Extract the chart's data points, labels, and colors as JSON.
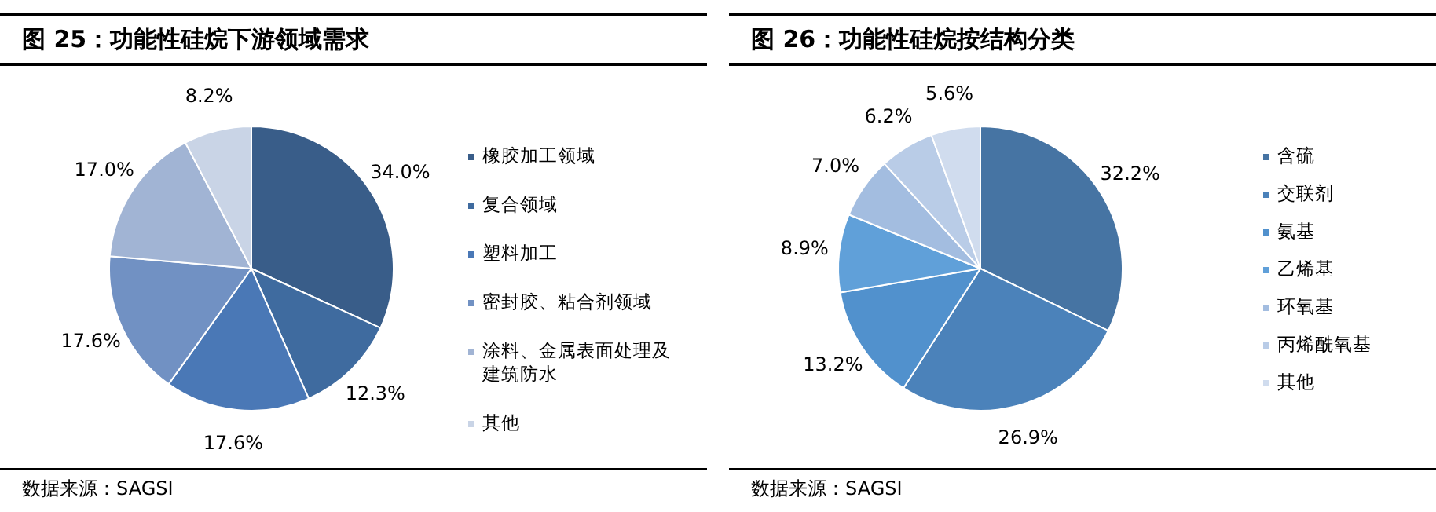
{
  "chart_data": [
    {
      "type": "pie",
      "title": "图 25：功能性硅烷下游领域需求",
      "categories": [
        "橡胶加工领域",
        "复合领域",
        "塑料加工",
        "密封胶、粘合剂领域",
        "涂料、金属表面处理及建筑防水",
        "其他"
      ],
      "values": [
        34.0,
        12.3,
        17.6,
        17.6,
        17.0,
        8.2
      ],
      "colors": [
        "#395d89",
        "#3f6b9f",
        "#4a78b6",
        "#7191c3",
        "#a1b4d4",
        "#c9d4e6"
      ],
      "value_labels": [
        "34.0%",
        "12.3%",
        "17.6%",
        "17.6%",
        "17.0%",
        "8.2%"
      ],
      "legend": "right",
      "annotations": [
        "数据来源：SAGSI"
      ]
    },
    {
      "type": "pie",
      "title": "图 26：功能性硅烷按结构分类",
      "categories": [
        "含硫",
        "交联剂",
        "氨基",
        "乙烯基",
        "环氧基",
        "丙烯酰氧基",
        "其他"
      ],
      "values": [
        32.2,
        26.9,
        13.2,
        8.9,
        7.0,
        6.2,
        5.6
      ],
      "colors": [
        "#4674a3",
        "#4b82ba",
        "#5191cd",
        "#60a0d9",
        "#a3bde0",
        "#b9cce7",
        "#d0dcee"
      ],
      "value_labels": [
        "32.2%",
        "26.9%",
        "13.2%",
        "8.9%",
        "7.0%",
        "6.2%",
        "5.6%"
      ],
      "legend": "right",
      "annotations": [
        "数据来源：SAGSI"
      ]
    }
  ]
}
